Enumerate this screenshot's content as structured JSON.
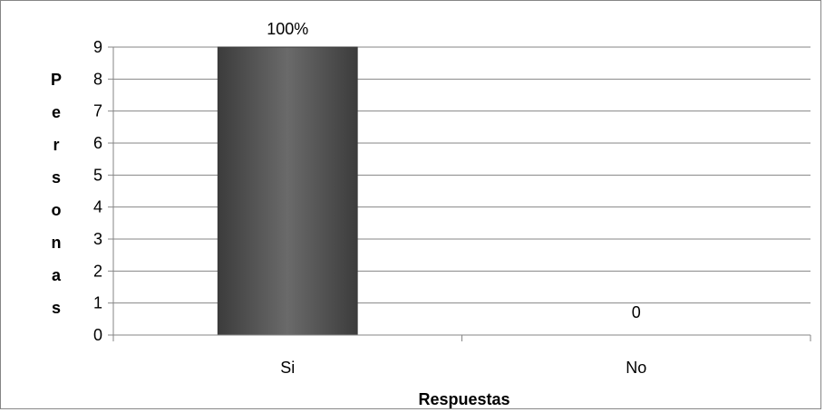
{
  "chart_data": {
    "type": "bar",
    "categories": [
      "Si",
      "No"
    ],
    "values": [
      9,
      0
    ],
    "data_labels": [
      "100%",
      "0"
    ],
    "xlabel": "Respuestas",
    "ylabel": "Personas",
    "ylim": [
      0,
      9
    ],
    "yticks": [
      "0",
      "1",
      "2",
      "3",
      "4",
      "5",
      "6",
      "7",
      "8",
      "9"
    ],
    "grid": true,
    "legend": "none",
    "colors": {
      "bar": "#595959",
      "bar_edge": "#3a3a3a",
      "grid": "#868686",
      "axis": "#868686"
    }
  }
}
